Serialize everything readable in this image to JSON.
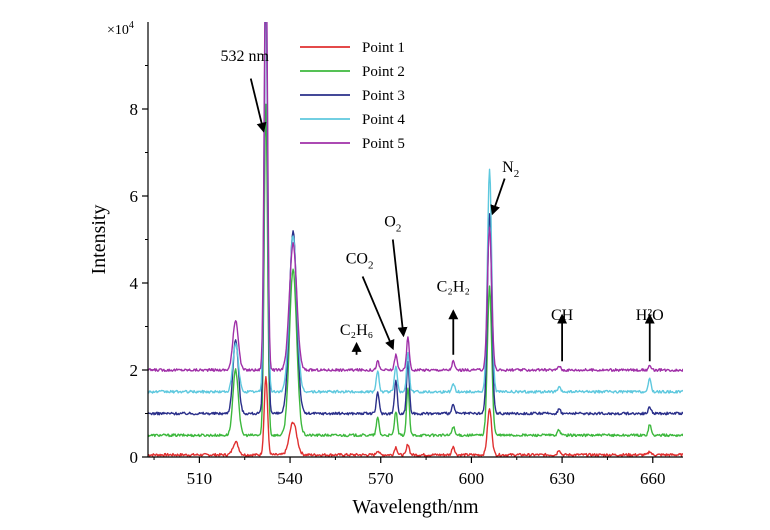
{
  "chart_data": {
    "type": "line",
    "xlabel": "Wavelength/nm",
    "ylabel": "Intensity",
    "y_multiplier": "×10",
    "y_multiplier_exp": "4",
    "xlim": [
      493,
      670
    ],
    "ylim": [
      0,
      10
    ],
    "x_ticks": [
      510,
      540,
      570,
      600,
      630,
      660
    ],
    "y_ticks": [
      0,
      2,
      4,
      6,
      8
    ],
    "legend_position": "top-center",
    "series": [
      {
        "name": "Point 1",
        "color": "#e03030",
        "baseline": 0.05,
        "peaks": [
          [
            522,
            0.3
          ],
          [
            532,
            1.8
          ],
          [
            541,
            0.75
          ],
          [
            569,
            0.1
          ],
          [
            575,
            0.18
          ],
          [
            579,
            0.25
          ],
          [
            594,
            0.2
          ],
          [
            606,
            1.05
          ],
          [
            629,
            0.12
          ],
          [
            659,
            0.08
          ]
        ]
      },
      {
        "name": "Point 2",
        "color": "#3db83d",
        "baseline": 0.5,
        "peaks": [
          [
            522,
            1.5
          ],
          [
            532,
            7.6
          ],
          [
            541,
            3.8
          ],
          [
            569,
            0.4
          ],
          [
            575,
            0.55
          ],
          [
            579,
            1.1
          ],
          [
            594,
            0.2
          ],
          [
            606,
            3.4
          ],
          [
            629,
            0.12
          ],
          [
            659,
            0.25
          ]
        ]
      },
      {
        "name": "Point 3",
        "color": "#2a2f8a",
        "baseline": 1.0,
        "peaks": [
          [
            522,
            1.7
          ],
          [
            532,
            9.9
          ],
          [
            541,
            4.2
          ],
          [
            569,
            0.5
          ],
          [
            575,
            0.75
          ],
          [
            579,
            1.2
          ],
          [
            594,
            0.2
          ],
          [
            606,
            4.6
          ],
          [
            629,
            0.1
          ],
          [
            659,
            0.15
          ]
        ]
      },
      {
        "name": "Point 4",
        "color": "#5ec8de",
        "baseline": 1.5,
        "peaks": [
          [
            522,
            1.1
          ],
          [
            532,
            9.9
          ],
          [
            541,
            3.6
          ],
          [
            569,
            0.5
          ],
          [
            575,
            0.6
          ],
          [
            579,
            0.9
          ],
          [
            594,
            0.2
          ],
          [
            606,
            5.1
          ],
          [
            629,
            0.1
          ],
          [
            659,
            0.3
          ]
        ]
      },
      {
        "name": "Point 5",
        "color": "#a030a8",
        "baseline": 2.0,
        "peaks": [
          [
            522,
            1.15
          ],
          [
            532,
            9.9
          ],
          [
            541,
            2.9
          ],
          [
            569,
            0.2
          ],
          [
            575,
            0.35
          ],
          [
            579,
            0.75
          ],
          [
            594,
            0.2
          ],
          [
            606,
            3.3
          ],
          [
            629,
            0.1
          ],
          [
            659,
            0.08
          ]
        ]
      }
    ],
    "annotations": [
      {
        "id": "a532",
        "label": "532 nm",
        "base": "",
        "sub": "",
        "text_x": 525,
        "text_y": 9.1,
        "from": [
          527,
          8.7
        ],
        "to": [
          531.2,
          7.5
        ]
      },
      {
        "id": "aN2",
        "label": "",
        "base": "N",
        "sub": "2",
        "text_x": 613,
        "text_y": 6.55,
        "from": [
          611,
          6.4
        ],
        "to": [
          607,
          5.6
        ]
      },
      {
        "id": "aO2",
        "label": "",
        "base": "O",
        "sub": "2",
        "text_x": 574,
        "text_y": 5.3,
        "from": [
          574,
          5.0
        ],
        "to": [
          577.5,
          2.8
        ]
      },
      {
        "id": "aCO2",
        "label": "",
        "base": "CO",
        "sub": "2",
        "text_x": 563,
        "text_y": 4.45,
        "from": [
          564,
          4.15
        ],
        "to": [
          574,
          2.5
        ]
      },
      {
        "id": "aC2H6",
        "label": "C₂H₆",
        "base": "",
        "sub": "",
        "text_x": 562,
        "text_y": 2.8,
        "from": [
          562,
          2.35
        ],
        "to": [
          562,
          2.6
        ]
      },
      {
        "id": "aC2H2",
        "label": "C₂H₂",
        "base": "",
        "sub": "",
        "text_x": 594,
        "text_y": 3.8,
        "from": [
          594,
          2.35
        ],
        "to": [
          594,
          3.35
        ]
      },
      {
        "id": "aCH",
        "label": "CH",
        "base": "",
        "sub": "",
        "text_x": 630,
        "text_y": 3.15,
        "from": [
          630,
          2.2
        ],
        "to": [
          630,
          3.25
        ]
      },
      {
        "id": "aH2O",
        "label": "H²O",
        "base": "",
        "sub": "",
        "text_x": 659,
        "text_y": 3.15,
        "from": [
          659,
          2.2
        ],
        "to": [
          659,
          3.25
        ]
      }
    ]
  }
}
